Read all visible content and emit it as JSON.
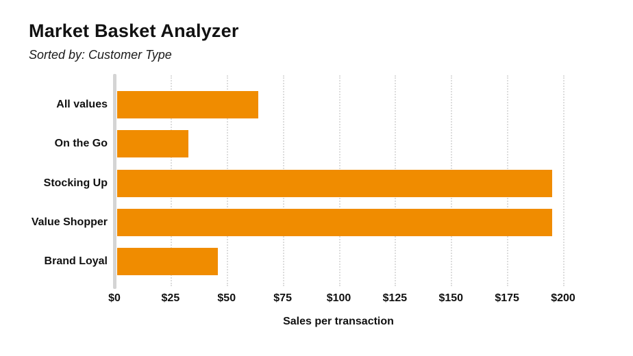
{
  "header": {
    "title": "Market Basket Analyzer",
    "subtitle": "Sorted by: Customer Type"
  },
  "chart_data": {
    "type": "bar",
    "orientation": "horizontal",
    "title": "Market Basket Analyzer",
    "subtitle": "Sorted by: Customer Type",
    "categories": [
      "All values",
      "On the Go",
      "Stocking Up",
      "Value Shopper",
      "Brand Loyal"
    ],
    "values": [
      64,
      33,
      195,
      195,
      46
    ],
    "xlabel": "Sales per transaction",
    "ylabel": "",
    "xlim": [
      0,
      200
    ],
    "x_tick_values": [
      0,
      25,
      50,
      75,
      100,
      125,
      150,
      175,
      200
    ],
    "x_tick_labels": [
      "$0",
      "$25",
      "$50",
      "$75",
      "$100",
      "$125",
      "$150",
      "$175",
      "$200"
    ],
    "grid": "vertical-dotted",
    "legend": "none",
    "colors": {
      "bar": "#F08C00",
      "axis_line": "#d4d4d4",
      "gridline": "#dcdcdc",
      "text": "#111111",
      "background": "#ffffff"
    }
  }
}
